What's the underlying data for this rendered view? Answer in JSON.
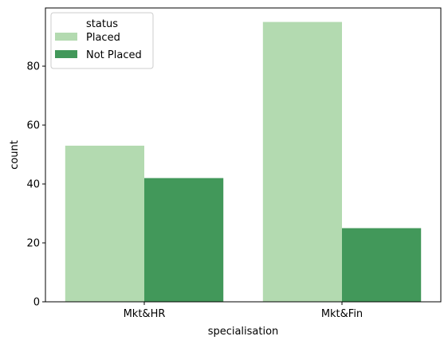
{
  "chart_data": {
    "type": "bar",
    "xlabel": "specialisation",
    "ylabel": "count",
    "categories": [
      "Mkt&HR",
      "Mkt&Fin"
    ],
    "series": [
      {
        "name": "Placed",
        "values": [
          53,
          95
        ],
        "color": "#b3dab0"
      },
      {
        "name": "Not Placed",
        "values": [
          42,
          25
        ],
        "color": "#42985a"
      }
    ],
    "ylim": [
      0,
      99.75
    ],
    "yticks": [
      0,
      20,
      40,
      60,
      80
    ],
    "grid": false,
    "legend": {
      "title": "status",
      "placement": "top-left"
    }
  }
}
